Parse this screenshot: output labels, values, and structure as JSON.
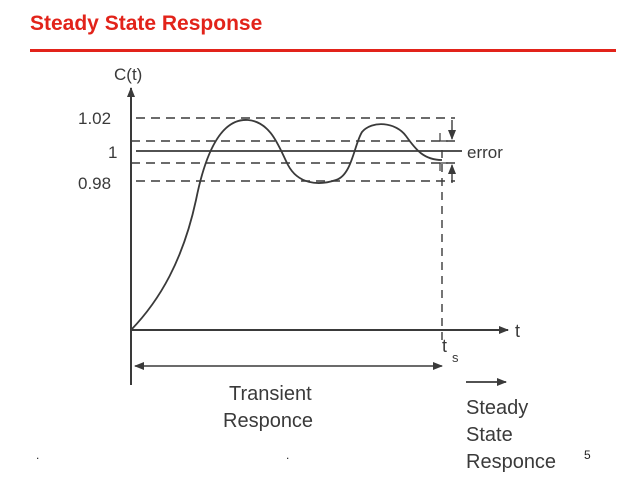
{
  "slide": {
    "title": "Steady State Response",
    "number": "5",
    "footer_left": ".",
    "footer_center": "."
  },
  "diagram": {
    "y_axis_label": "C(t)",
    "x_axis_label": "t",
    "tick_upper": "1.02",
    "tick_final": "1",
    "tick_lower": "0.98",
    "error_label": "error",
    "ts_label": "t",
    "ts_subscript": "s",
    "transient_label": [
      "Transient",
      "Responce"
    ],
    "steady_label": [
      "Steady",
      "State",
      "Responce"
    ]
  },
  "colors": {
    "title": "#e2231a",
    "ink": "#3a3a3a"
  }
}
